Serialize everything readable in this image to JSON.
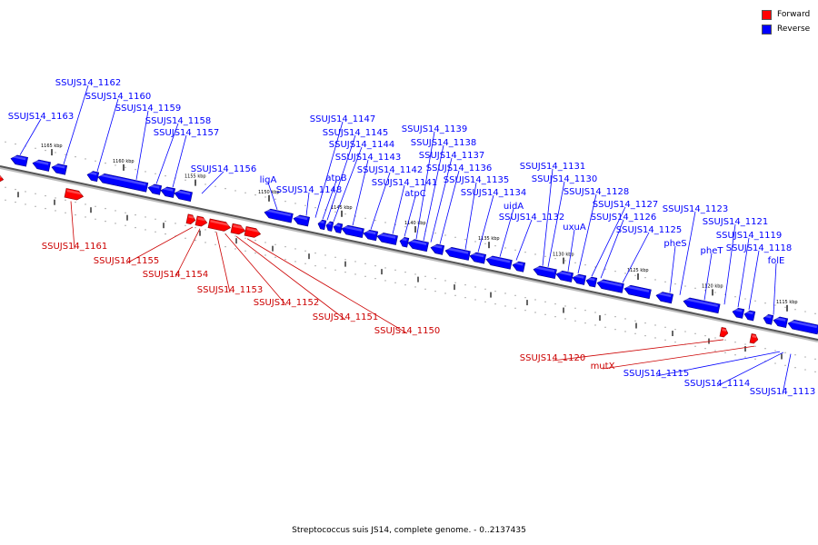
{
  "legend": {
    "forward_label": "Forward",
    "reverse_label": "Reverse",
    "forward_color": "#ff0000",
    "reverse_color": "#0000ff"
  },
  "caption": "Streptococcus suis JS14, complete genome. - 0..2137435",
  "scale_ticks": [
    {
      "label": "1165 kbp"
    },
    {
      "label": "1160 kbp"
    },
    {
      "label": "1155 kbp"
    },
    {
      "label": "1150 kbp"
    },
    {
      "label": "1145 kbp"
    },
    {
      "label": "1140 kbp"
    },
    {
      "label": "1135 kbp"
    },
    {
      "label": "1130 kbp"
    },
    {
      "label": "1125 kbp"
    },
    {
      "label": "1120 kbp"
    },
    {
      "label": "1115 kbp"
    }
  ],
  "reverse_genes": [
    "SSUJS14_1163",
    "SSUJS14_1162",
    "SSUJS14_1160",
    "SSUJS14_1159",
    "SSUJS14_1158",
    "SSUJS14_1157",
    "SSUJS14_1156",
    "ligA",
    "SSUJS14_1148",
    "SSUJS14_1147",
    "atpB",
    "SSUJS14_1145",
    "SSUJS14_1144",
    "SSUJS14_1143",
    "SSUJS14_1142",
    "SSUJS14_1141",
    "atpC",
    "SSUJS14_1139",
    "SSUJS14_1138",
    "SSUJS14_1137",
    "SSUJS14_1136",
    "SSUJS14_1135",
    "SSUJS14_1134",
    "uidA",
    "SSUJS14_1132",
    "SSUJS14_1131",
    "SSUJS14_1130",
    "uxuA",
    "SSUJS14_1128",
    "SSUJS14_1127",
    "SSUJS14_1126",
    "SSUJS14_1125",
    "pheS",
    "SSUJS14_1123",
    "pheT",
    "SSUJS14_1121",
    "SSUJS14_1119",
    "SSUJS14_1118",
    "folE"
  ],
  "forward_genes": [
    "SSUJS14_1161",
    "SSUJS14_1155",
    "SSUJS14_1154",
    "SSUJS14_1153",
    "SSUJS14_1152",
    "SSUJS14_1151",
    "SSUJS14_1150",
    "SSUJS14_1120",
    "mutX"
  ],
  "other_genes": [
    "SSUJS14_1115",
    "SSUJS14_1114",
    "SSUJS14_1113"
  ]
}
